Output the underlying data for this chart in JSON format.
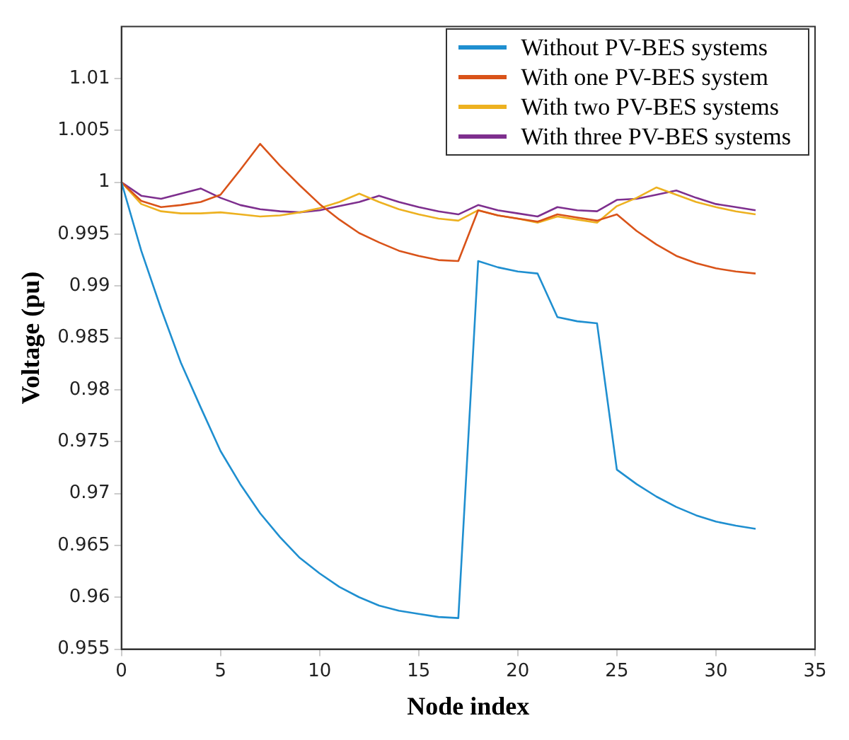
{
  "chart_data": {
    "type": "line",
    "xlabel": "Node index",
    "ylabel": "Voltage (pu)",
    "x": [
      0,
      1,
      2,
      3,
      4,
      5,
      6,
      7,
      8,
      9,
      10,
      11,
      12,
      13,
      14,
      15,
      16,
      17,
      18,
      19,
      20,
      21,
      22,
      23,
      24,
      25,
      26,
      27,
      28,
      29,
      30,
      31,
      32
    ],
    "series": [
      {
        "name": "Without PV-BES systems",
        "color": "#1f8fd0",
        "values": [
          1.0,
          0.9934,
          0.9878,
          0.9826,
          0.9783,
          0.9741,
          0.9709,
          0.9681,
          0.9658,
          0.9638,
          0.9623,
          0.961,
          0.96,
          0.9592,
          0.9587,
          0.9584,
          0.9581,
          0.958,
          0.9924,
          0.9918,
          0.9914,
          0.9912,
          0.987,
          0.9866,
          0.9864,
          0.9723,
          0.9709,
          0.9697,
          0.9687,
          0.9679,
          0.9673,
          0.9669,
          0.9666
        ]
      },
      {
        "name": "With one PV-BES system",
        "color": "#d95319",
        "values": [
          1.0,
          0.9982,
          0.9976,
          0.9978,
          0.9981,
          0.9988,
          1.0012,
          1.0037,
          1.0016,
          0.9997,
          0.9979,
          0.9964,
          0.9951,
          0.9942,
          0.9934,
          0.9929,
          0.9925,
          0.9924,
          0.9973,
          0.9968,
          0.9965,
          0.9962,
          0.9969,
          0.9966,
          0.9963,
          0.9969,
          0.9953,
          0.994,
          0.9929,
          0.9922,
          0.9917,
          0.9914,
          0.9912
        ]
      },
      {
        "name": "With two PV-BES systems",
        "color": "#edb120",
        "values": [
          1.0,
          0.9979,
          0.9972,
          0.997,
          0.997,
          0.9971,
          0.9969,
          0.9967,
          0.9968,
          0.9971,
          0.9975,
          0.9981,
          0.9989,
          0.9981,
          0.9974,
          0.9969,
          0.9965,
          0.9963,
          0.9973,
          0.9968,
          0.9965,
          0.9961,
          0.9967,
          0.9964,
          0.9961,
          0.9977,
          0.9985,
          0.9995,
          0.9988,
          0.9981,
          0.9976,
          0.9972,
          0.9969
        ]
      },
      {
        "name": "With three PV-BES systems",
        "color": "#7e2f8e",
        "values": [
          1.0,
          0.9987,
          0.9984,
          0.9989,
          0.9994,
          0.9985,
          0.9978,
          0.9974,
          0.9972,
          0.9971,
          0.9973,
          0.9977,
          0.9981,
          0.9987,
          0.9981,
          0.9976,
          0.9972,
          0.9969,
          0.9978,
          0.9973,
          0.997,
          0.9967,
          0.9976,
          0.9973,
          0.9972,
          0.9983,
          0.9984,
          0.9988,
          0.9992,
          0.9985,
          0.9979,
          0.9976,
          0.9973
        ]
      }
    ],
    "xlim": [
      0,
      35
    ],
    "xticks": [
      0,
      5,
      10,
      15,
      20,
      25,
      30,
      35
    ],
    "ylim": [
      0.955,
      1.015
    ],
    "yticks": [
      0.955,
      0.96,
      0.965,
      0.97,
      0.975,
      0.98,
      0.985,
      0.99,
      0.995,
      1,
      1.005,
      1.01
    ],
    "grid": false,
    "legend": "top right",
    "marker": "none",
    "line_style": "solid"
  }
}
